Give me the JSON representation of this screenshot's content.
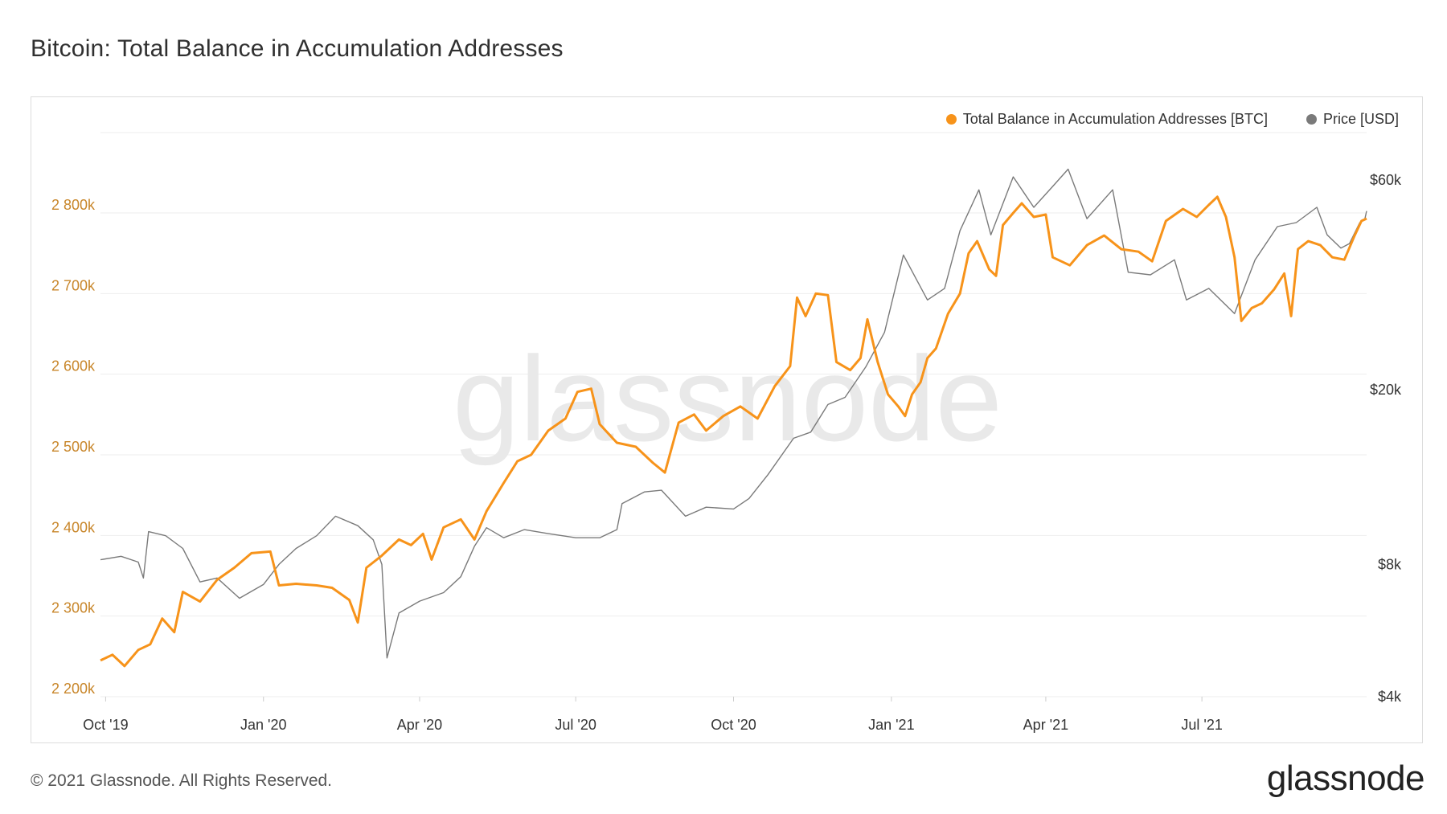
{
  "title": "Bitcoin: Total Balance in Accumulation Addresses",
  "footer": {
    "copyright": "© 2021 Glassnode. All Rights Reserved.",
    "logo": "glassnode"
  },
  "watermark": "glassnode",
  "colors": {
    "balance": "#f7931a",
    "price": "#7a7a7a",
    "grid": "#eeeeee",
    "left_axis_text": "#c8862a",
    "right_axis_text": "#333333"
  },
  "legend": [
    {
      "label": "Total Balance in Accumulation Addresses [BTC]",
      "color": "#f7931a"
    },
    {
      "label": "Price [USD]",
      "color": "#7a7a7a"
    }
  ],
  "chart_data": {
    "type": "line",
    "x_ticks": [
      "Oct '19",
      "Jan '20",
      "Apr '20",
      "Jul '20",
      "Oct '20",
      "Jan '21",
      "Apr '21",
      "Jul '21"
    ],
    "x_tick_dates": [
      "2019-10-01",
      "2020-01-01",
      "2020-04-01",
      "2020-07-01",
      "2020-10-01",
      "2021-01-01",
      "2021-04-01",
      "2021-07-01"
    ],
    "x_range": [
      "2019-09-28",
      "2021-10-05"
    ],
    "left_axis": {
      "ticks": [
        "2 200k",
        "2 300k",
        "2 400k",
        "2 500k",
        "2 600k",
        "2 700k",
        "2 800k"
      ],
      "values": [
        2200000,
        2300000,
        2400000,
        2500000,
        2600000,
        2700000,
        2800000
      ],
      "ylim": [
        2200000,
        2800000
      ]
    },
    "right_axis": {
      "scale": "log",
      "ticks": [
        "$4k",
        "$8k",
        "$20k",
        "$60k"
      ],
      "values": [
        4000,
        8000,
        20000,
        60000
      ]
    },
    "series": [
      {
        "name": "Total Balance in Accumulation Addresses [BTC]",
        "axis": "left",
        "points": [
          [
            "2019-09-28",
            2245000
          ],
          [
            "2019-10-05",
            2252000
          ],
          [
            "2019-10-12",
            2238000
          ],
          [
            "2019-10-20",
            2258000
          ],
          [
            "2019-10-27",
            2265000
          ],
          [
            "2019-11-03",
            2297000
          ],
          [
            "2019-11-10",
            2280000
          ],
          [
            "2019-11-15",
            2330000
          ],
          [
            "2019-11-25",
            2318000
          ],
          [
            "2019-12-05",
            2345000
          ],
          [
            "2019-12-15",
            2360000
          ],
          [
            "2019-12-25",
            2378000
          ],
          [
            "2020-01-05",
            2380000
          ],
          [
            "2020-01-10",
            2338000
          ],
          [
            "2020-01-20",
            2340000
          ],
          [
            "2020-02-01",
            2338000
          ],
          [
            "2020-02-10",
            2335000
          ],
          [
            "2020-02-20",
            2320000
          ],
          [
            "2020-02-25",
            2292000
          ],
          [
            "2020-03-01",
            2360000
          ],
          [
            "2020-03-10",
            2375000
          ],
          [
            "2020-03-20",
            2395000
          ],
          [
            "2020-03-27",
            2388000
          ],
          [
            "2020-04-03",
            2402000
          ],
          [
            "2020-04-08",
            2370000
          ],
          [
            "2020-04-15",
            2410000
          ],
          [
            "2020-04-25",
            2420000
          ],
          [
            "2020-05-03",
            2395000
          ],
          [
            "2020-05-10",
            2430000
          ],
          [
            "2020-05-20",
            2465000
          ],
          [
            "2020-05-28",
            2492000
          ],
          [
            "2020-06-05",
            2500000
          ],
          [
            "2020-06-15",
            2530000
          ],
          [
            "2020-06-25",
            2545000
          ],
          [
            "2020-07-02",
            2578000
          ],
          [
            "2020-07-10",
            2582000
          ],
          [
            "2020-07-15",
            2538000
          ],
          [
            "2020-07-25",
            2515000
          ],
          [
            "2020-08-05",
            2510000
          ],
          [
            "2020-08-15",
            2490000
          ],
          [
            "2020-08-22",
            2478000
          ],
          [
            "2020-08-30",
            2540000
          ],
          [
            "2020-09-08",
            2550000
          ],
          [
            "2020-09-15",
            2530000
          ],
          [
            "2020-09-25",
            2548000
          ],
          [
            "2020-10-05",
            2560000
          ],
          [
            "2020-10-15",
            2545000
          ],
          [
            "2020-10-25",
            2585000
          ],
          [
            "2020-11-03",
            2610000
          ],
          [
            "2020-11-07",
            2695000
          ],
          [
            "2020-11-12",
            2672000
          ],
          [
            "2020-11-18",
            2700000
          ],
          [
            "2020-11-25",
            2698000
          ],
          [
            "2020-11-30",
            2615000
          ],
          [
            "2020-12-08",
            2605000
          ],
          [
            "2020-12-14",
            2620000
          ],
          [
            "2020-12-18",
            2668000
          ],
          [
            "2020-12-24",
            2615000
          ],
          [
            "2020-12-30",
            2575000
          ],
          [
            "2021-01-05",
            2560000
          ],
          [
            "2021-01-09",
            2548000
          ],
          [
            "2021-01-13",
            2575000
          ],
          [
            "2021-01-18",
            2590000
          ],
          [
            "2021-01-22",
            2620000
          ],
          [
            "2021-01-27",
            2632000
          ],
          [
            "2021-02-03",
            2675000
          ],
          [
            "2021-02-10",
            2700000
          ],
          [
            "2021-02-15",
            2750000
          ],
          [
            "2021-02-20",
            2765000
          ],
          [
            "2021-02-27",
            2730000
          ],
          [
            "2021-03-03",
            2722000
          ],
          [
            "2021-03-07",
            2785000
          ],
          [
            "2021-03-13",
            2800000
          ],
          [
            "2021-03-18",
            2812000
          ],
          [
            "2021-03-25",
            2795000
          ],
          [
            "2021-04-01",
            2798000
          ],
          [
            "2021-04-05",
            2745000
          ],
          [
            "2021-04-15",
            2735000
          ],
          [
            "2021-04-25",
            2760000
          ],
          [
            "2021-05-05",
            2772000
          ],
          [
            "2021-05-15",
            2755000
          ],
          [
            "2021-05-25",
            2752000
          ],
          [
            "2021-06-02",
            2740000
          ],
          [
            "2021-06-10",
            2790000
          ],
          [
            "2021-06-20",
            2805000
          ],
          [
            "2021-06-28",
            2795000
          ],
          [
            "2021-07-05",
            2810000
          ],
          [
            "2021-07-10",
            2820000
          ],
          [
            "2021-07-15",
            2795000
          ],
          [
            "2021-07-20",
            2745000
          ],
          [
            "2021-07-24",
            2666000
          ],
          [
            "2021-07-30",
            2682000
          ],
          [
            "2021-08-05",
            2688000
          ],
          [
            "2021-08-12",
            2705000
          ],
          [
            "2021-08-18",
            2725000
          ],
          [
            "2021-08-22",
            2672000
          ],
          [
            "2021-08-26",
            2755000
          ],
          [
            "2021-09-01",
            2765000
          ],
          [
            "2021-09-08",
            2760000
          ],
          [
            "2021-09-15",
            2745000
          ],
          [
            "2021-09-22",
            2742000
          ],
          [
            "2021-09-28",
            2772000
          ],
          [
            "2021-10-02",
            2790000
          ],
          [
            "2021-10-05",
            2793000
          ]
        ]
      },
      {
        "name": "Price [USD]",
        "axis": "right",
        "points": [
          [
            "2019-09-28",
            8200
          ],
          [
            "2019-10-10",
            8350
          ],
          [
            "2019-10-20",
            8100
          ],
          [
            "2019-10-23",
            7450
          ],
          [
            "2019-10-26",
            9500
          ],
          [
            "2019-11-05",
            9300
          ],
          [
            "2019-11-15",
            8700
          ],
          [
            "2019-11-25",
            7300
          ],
          [
            "2019-12-05",
            7450
          ],
          [
            "2019-12-18",
            6700
          ],
          [
            "2020-01-01",
            7200
          ],
          [
            "2020-01-10",
            8000
          ],
          [
            "2020-01-20",
            8700
          ],
          [
            "2020-02-01",
            9300
          ],
          [
            "2020-02-12",
            10300
          ],
          [
            "2020-02-25",
            9800
          ],
          [
            "2020-03-05",
            9100
          ],
          [
            "2020-03-10",
            8000
          ],
          [
            "2020-03-13",
            4900
          ],
          [
            "2020-03-20",
            6200
          ],
          [
            "2020-04-01",
            6600
          ],
          [
            "2020-04-15",
            6900
          ],
          [
            "2020-04-25",
            7500
          ],
          [
            "2020-05-03",
            8800
          ],
          [
            "2020-05-10",
            9700
          ],
          [
            "2020-05-20",
            9200
          ],
          [
            "2020-06-01",
            9600
          ],
          [
            "2020-06-15",
            9400
          ],
          [
            "2020-07-01",
            9200
          ],
          [
            "2020-07-15",
            9200
          ],
          [
            "2020-07-25",
            9600
          ],
          [
            "2020-07-28",
            11000
          ],
          [
            "2020-08-10",
            11700
          ],
          [
            "2020-08-20",
            11800
          ],
          [
            "2020-09-03",
            10300
          ],
          [
            "2020-09-15",
            10800
          ],
          [
            "2020-10-01",
            10700
          ],
          [
            "2020-10-10",
            11300
          ],
          [
            "2020-10-21",
            12800
          ],
          [
            "2020-11-05",
            15500
          ],
          [
            "2020-11-15",
            16000
          ],
          [
            "2020-11-25",
            18500
          ],
          [
            "2020-12-05",
            19200
          ],
          [
            "2020-12-17",
            22500
          ],
          [
            "2020-12-28",
            27000
          ],
          [
            "2021-01-08",
            40500
          ],
          [
            "2021-01-15",
            36000
          ],
          [
            "2021-01-22",
            32000
          ],
          [
            "2021-02-01",
            34000
          ],
          [
            "2021-02-10",
            46000
          ],
          [
            "2021-02-21",
            57000
          ],
          [
            "2021-02-28",
            45000
          ],
          [
            "2021-03-13",
            61000
          ],
          [
            "2021-03-25",
            52000
          ],
          [
            "2021-04-05",
            58000
          ],
          [
            "2021-04-14",
            63500
          ],
          [
            "2021-04-25",
            49000
          ],
          [
            "2021-05-10",
            57000
          ],
          [
            "2021-05-19",
            37000
          ],
          [
            "2021-06-01",
            36500
          ],
          [
            "2021-06-15",
            39500
          ],
          [
            "2021-06-22",
            32000
          ],
          [
            "2021-07-05",
            34000
          ],
          [
            "2021-07-20",
            29800
          ],
          [
            "2021-08-01",
            39500
          ],
          [
            "2021-08-14",
            47000
          ],
          [
            "2021-08-25",
            48000
          ],
          [
            "2021-09-06",
            52000
          ],
          [
            "2021-09-12",
            45000
          ],
          [
            "2021-09-20",
            42000
          ],
          [
            "2021-09-25",
            43000
          ],
          [
            "2021-10-01",
            48000
          ],
          [
            "2021-10-04",
            49000
          ],
          [
            "2021-10-05",
            51000
          ]
        ]
      }
    ],
    "legend_position": "top-right",
    "grid": true
  }
}
